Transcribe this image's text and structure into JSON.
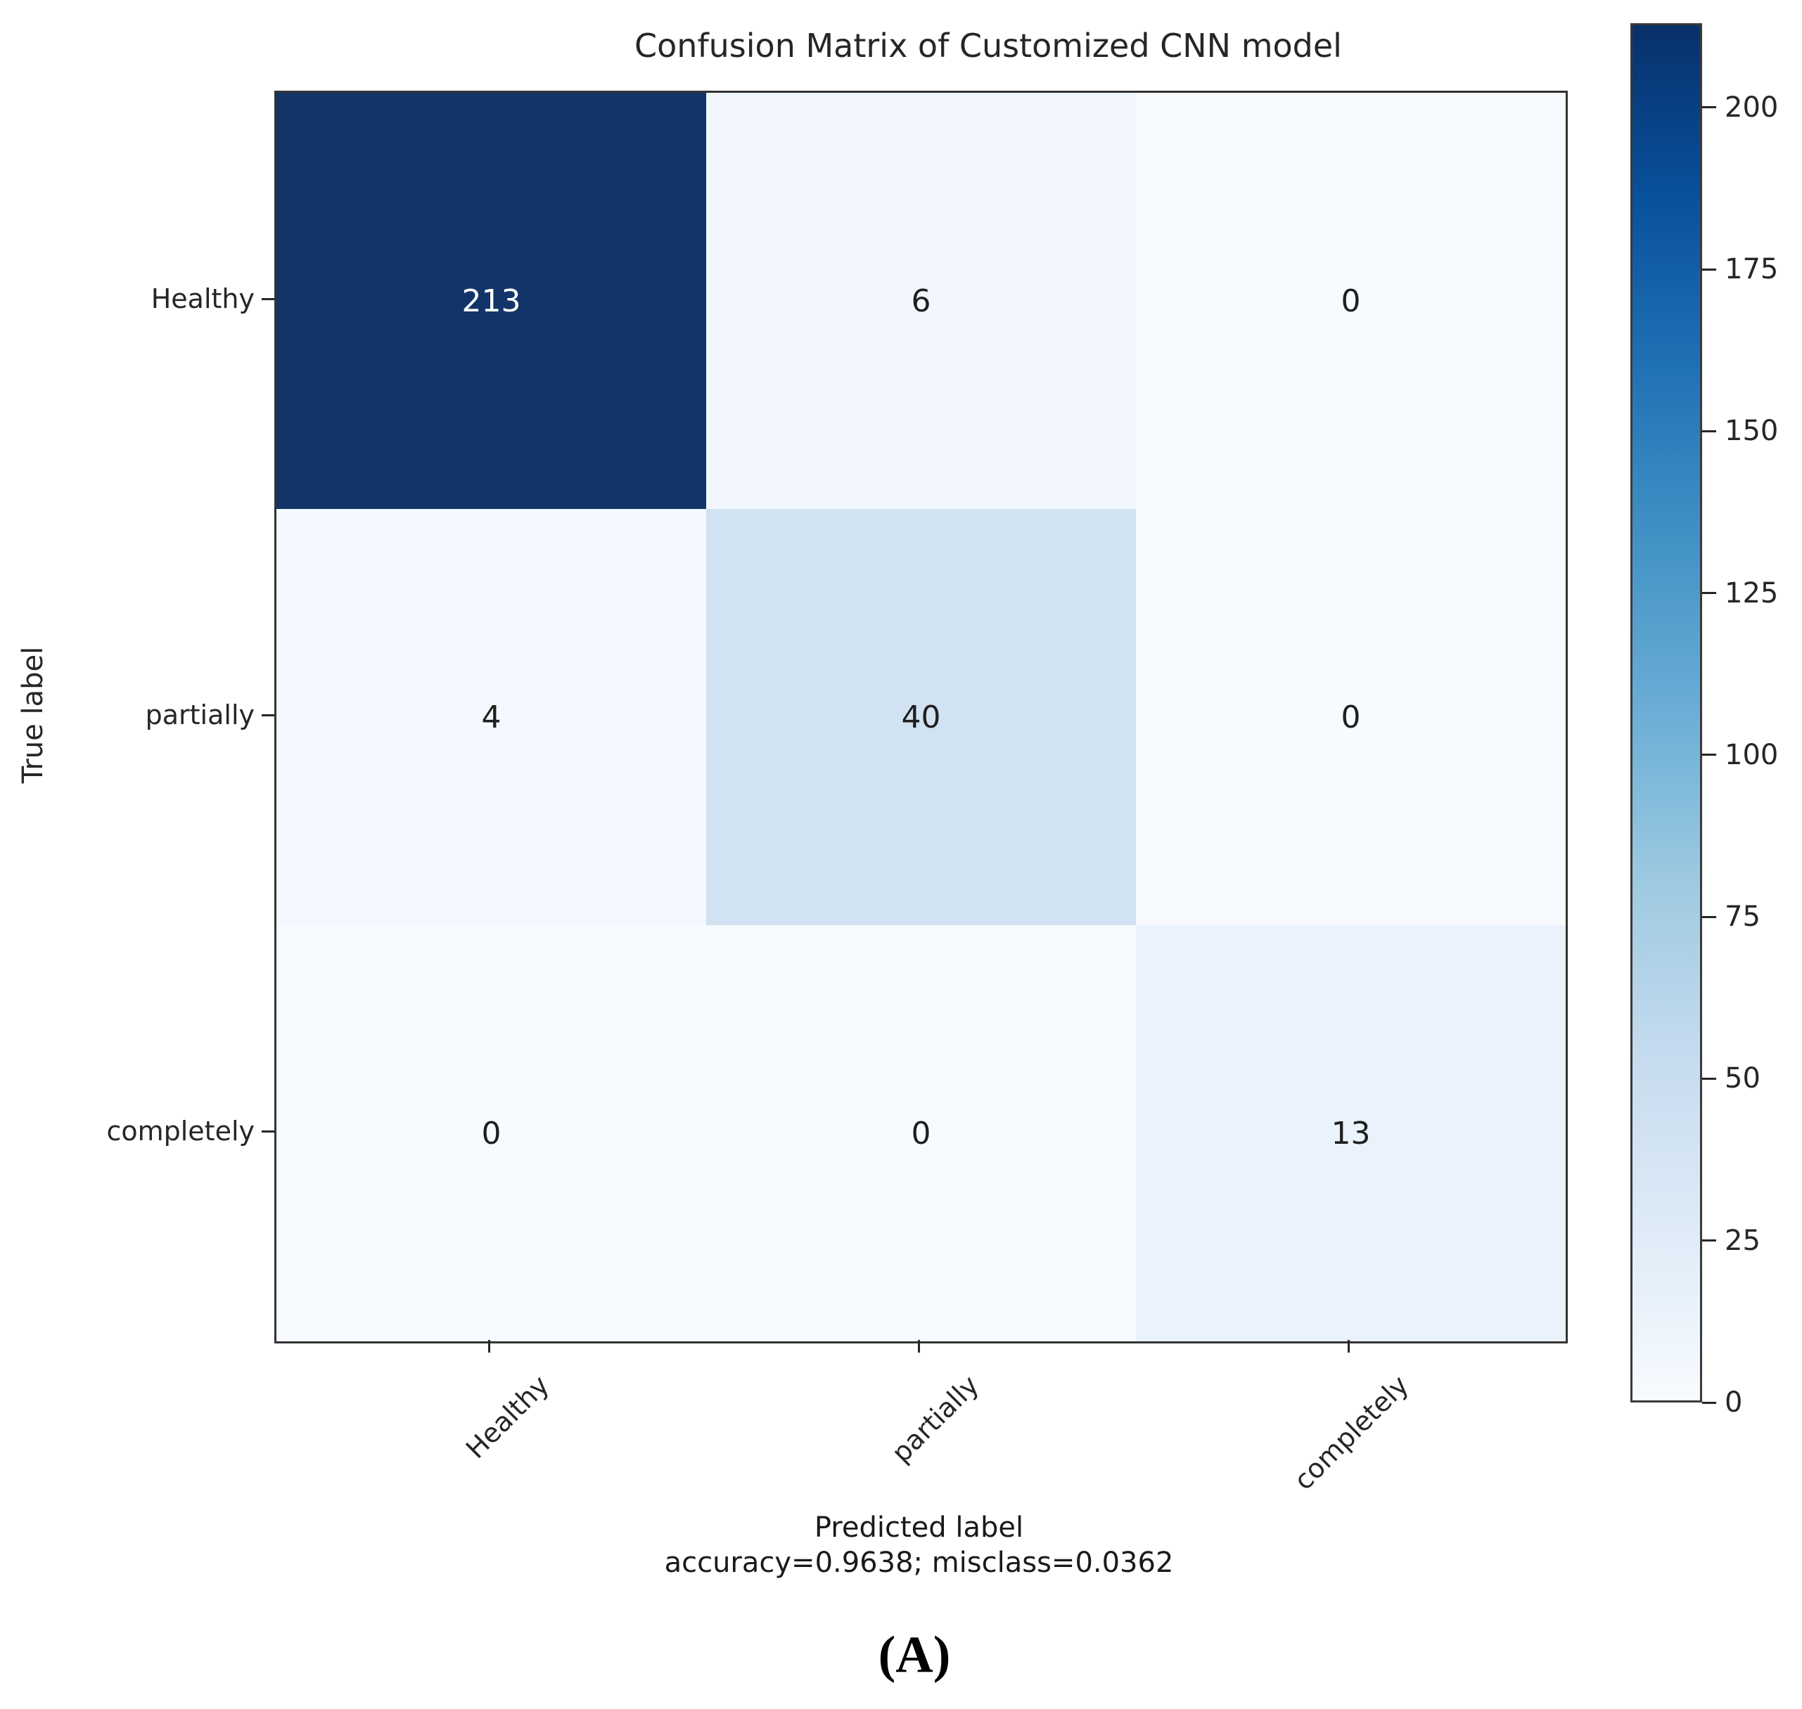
{
  "title": "Confusion Matrix of Customized CNN model",
  "y_axis_label": "True label",
  "x_axis_label": "Predicted label",
  "accuracy_text": "accuracy=0.9638; misclass=0.0362",
  "caption": "(A)",
  "chart_data": {
    "type": "heatmap",
    "title": "Confusion Matrix of Customized CNN model",
    "xlabel": "Predicted label",
    "ylabel": "True label",
    "row_labels": [
      "Healthy",
      "partially",
      "completely"
    ],
    "col_labels": [
      "Healthy",
      "partially",
      "completely"
    ],
    "matrix": [
      [
        213,
        6,
        0
      ],
      [
        4,
        40,
        0
      ],
      [
        0,
        0,
        13
      ]
    ],
    "accuracy": 0.9638,
    "misclass": 0.0362,
    "cell_colors": [
      [
        "#123468",
        "#f1f7fd",
        "#f7fbff"
      ],
      [
        "#f3f9fe",
        "#d1e2f2",
        "#f7fbff"
      ],
      [
        "#f7fbff",
        "#f7fbff",
        "#eaf2fb"
      ]
    ],
    "cell_text_colors": [
      [
        "#ffffff",
        "#1f1f1f",
        "#1f1f1f"
      ],
      [
        "#1f1f1f",
        "#1f1f1f",
        "#1f1f1f"
      ],
      [
        "#1f1f1f",
        "#1f1f1f",
        "#1f1f1f"
      ]
    ],
    "colormap_name": "Blues",
    "colorbar": {
      "min": 0,
      "max": 213,
      "ticks": [
        0,
        25,
        50,
        75,
        100,
        125,
        150,
        175,
        200
      ],
      "gradient_low_to_high": [
        "#f7fbff",
        "#deebf7",
        "#c6dbef",
        "#9ecae1",
        "#6baed6",
        "#4292c6",
        "#2171b5",
        "#08519c",
        "#08306b"
      ]
    }
  }
}
